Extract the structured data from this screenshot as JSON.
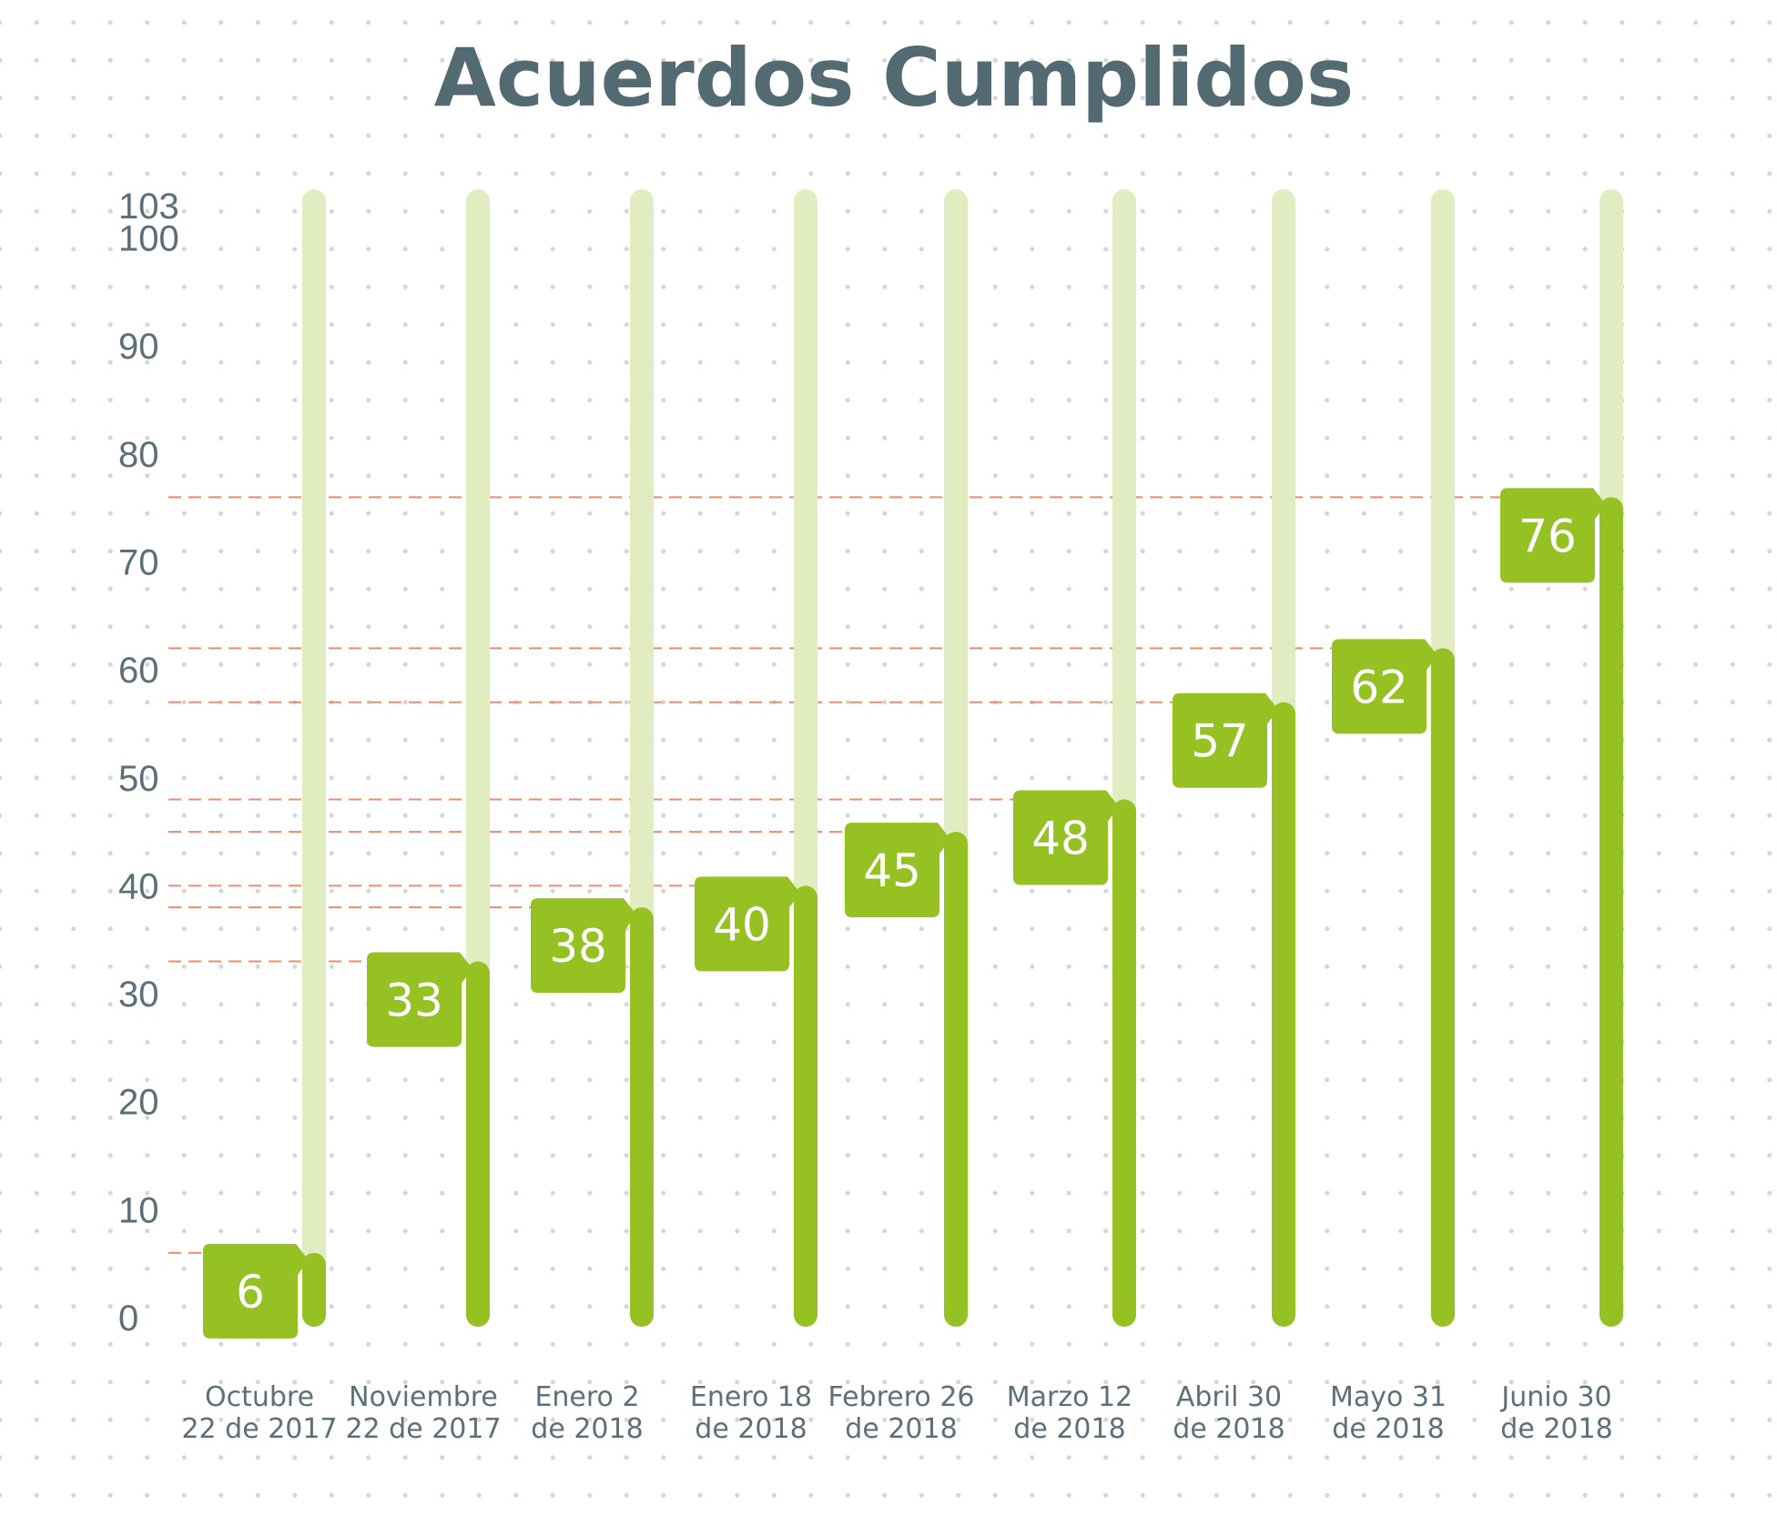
{
  "chart_data": {
    "type": "bar",
    "title": "Acuerdos Cumplidos",
    "xlabel": "",
    "ylabel": "",
    "ylim": [
      0,
      103
    ],
    "y_ticks": [
      0,
      10,
      20,
      30,
      40,
      50,
      60,
      70,
      80,
      90,
      100,
      103
    ],
    "grid": false,
    "categories": [
      [
        "Octubre",
        "22 de 2017"
      ],
      [
        "Noviembre",
        "22 de 2017"
      ],
      [
        "Enero 2",
        "de 2018"
      ],
      [
        "Enero 18",
        "de 2018"
      ],
      [
        "Febrero 26",
        "de 2018"
      ],
      [
        "Marzo 12",
        "de 2018"
      ],
      [
        "Abril 30",
        "de 2018"
      ],
      [
        "Mayo 31",
        "de 2018"
      ],
      [
        "Junio 30",
        "de 2018"
      ]
    ],
    "values": [
      6,
      33,
      38,
      40,
      45,
      48,
      57,
      62,
      76
    ],
    "reference_lines": "dashed horizontal line at each value level",
    "colors": {
      "bar": "#95c122",
      "track": "#e1edc0",
      "label_box": "#95c122",
      "reference_line": "#ec8d6e",
      "title": "#546a73",
      "axis_text": "#5c6e78"
    }
  }
}
